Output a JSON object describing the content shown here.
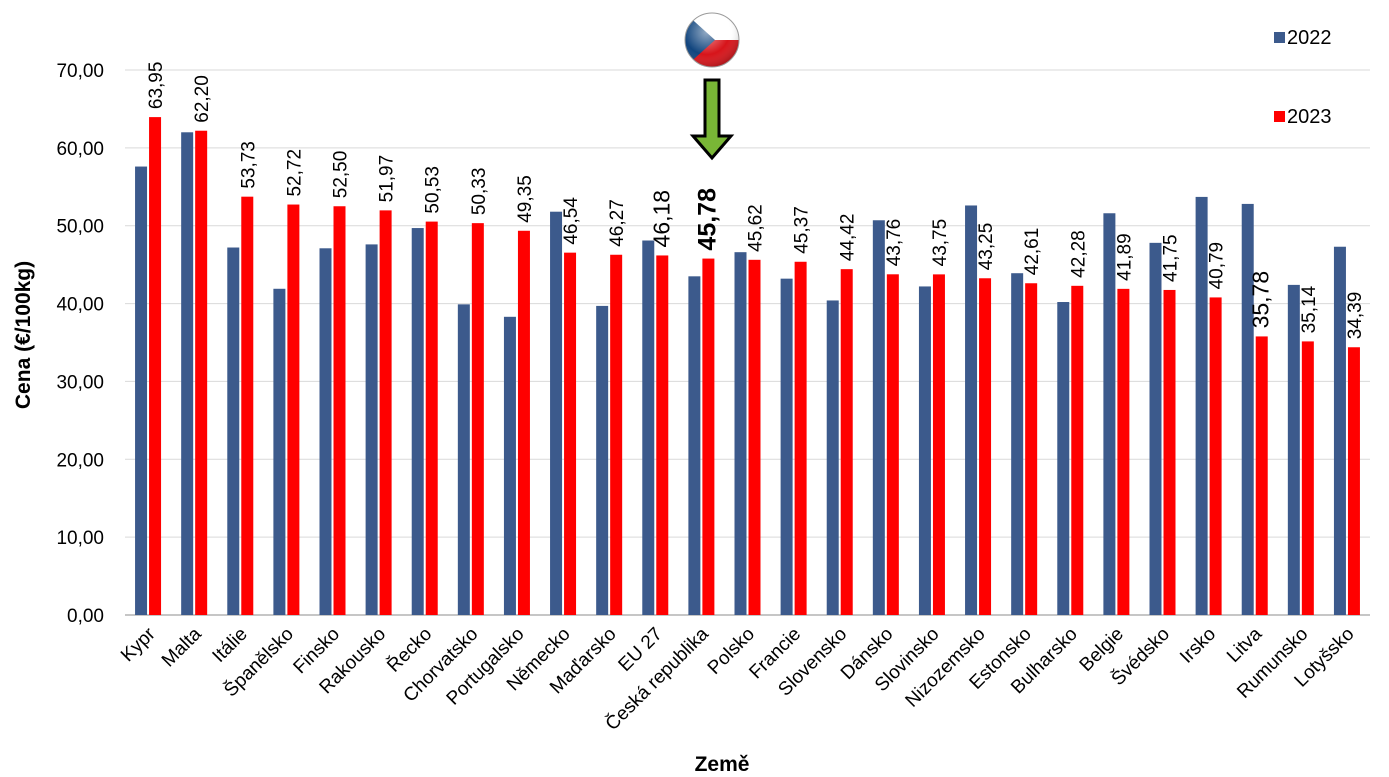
{
  "chart_data": {
    "type": "bar",
    "xlabel": "Země",
    "ylabel": "Cena (€/100kg)",
    "ylim": [
      0,
      70
    ],
    "yticks": [
      "0,00",
      "10,00",
      "20,00",
      "30,00",
      "40,00",
      "50,00",
      "60,00",
      "70,00"
    ],
    "grid": true,
    "legend": "top-right",
    "highlight_category": "Česká republika",
    "highlight_icon": "czech-flag-icon",
    "highlight_marker": "green-down-arrow-icon",
    "categories": [
      "Kypr",
      "Malta",
      "Itálie",
      "Španělsko",
      "Finsko",
      "Rakousko",
      "Řecko",
      "Chorvatsko",
      "Portugalsko",
      "Německo",
      "Maďarsko",
      "EU 27",
      "Česká republika",
      "Polsko",
      "Francie",
      "Slovensko",
      "Dánsko",
      "Slovinsko",
      "Nizozemsko",
      "Estonsko",
      "Bulharsko",
      "Belgie",
      "Švédsko",
      "Irsko",
      "Litva",
      "Rumunsko",
      "Lotyšsko"
    ],
    "series": [
      {
        "name": "2022",
        "color": "#3c5a8c",
        "values": [
          57.6,
          62.0,
          47.2,
          41.9,
          47.1,
          47.6,
          49.7,
          39.9,
          38.3,
          51.8,
          39.7,
          48.1,
          43.5,
          46.6,
          43.2,
          40.4,
          50.7,
          42.2,
          52.6,
          43.9,
          40.2,
          51.6,
          47.8,
          53.7,
          52.8,
          42.4,
          47.3
        ]
      },
      {
        "name": "2023",
        "color": "#ff0000",
        "values": [
          63.95,
          62.2,
          53.73,
          52.72,
          52.5,
          51.97,
          50.53,
          50.33,
          49.35,
          46.54,
          46.27,
          46.18,
          45.78,
          45.62,
          45.37,
          44.42,
          43.76,
          43.75,
          43.25,
          42.61,
          42.28,
          41.89,
          41.75,
          40.79,
          35.78,
          35.14,
          34.39
        ],
        "labels": [
          "63,95",
          "62,20",
          "53,73",
          "52,72",
          "52,50",
          "51,97",
          "50,53",
          "50,33",
          "49,35",
          "46,54",
          "46,27",
          "46,18",
          "45,78",
          "45,62",
          "45,37",
          "44,42",
          "43,76",
          "43,75",
          "43,25",
          "42,61",
          "42,28",
          "41,89",
          "41,75",
          "40,79",
          "35,78",
          "35,14",
          "34,39"
        ]
      }
    ]
  }
}
